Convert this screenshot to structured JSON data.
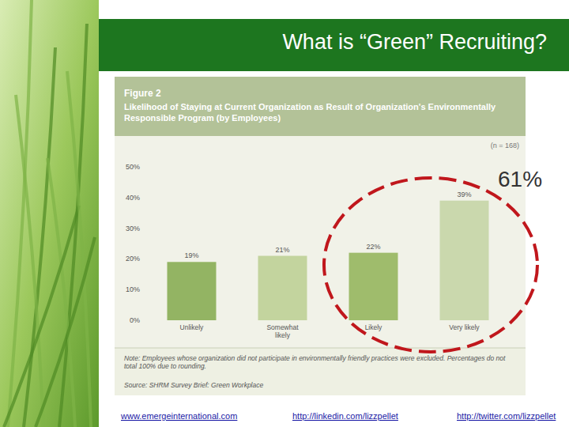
{
  "slide": {
    "title": "What is “Green” Recruiting?",
    "footer": [
      "www.emergeinternational.com",
      "http://linkedin.com/lizzpellet",
      "http://twitter.com/lizzpellet"
    ]
  },
  "chart_data": {
    "type": "bar",
    "figure_label": "Figure 2",
    "title": "Likelihood of Staying at Current Organization as Result of Organization's Environmentally Responsible Program (by Employees)",
    "sample_size": "(n = 168)",
    "categories": [
      "Unlikely",
      "Somewhat likely",
      "Likely",
      "Very likely"
    ],
    "values": [
      19,
      21,
      22,
      39
    ],
    "value_labels": [
      "19%",
      "21%",
      "22%",
      "39%"
    ],
    "colors": [
      "#93b463",
      "#c3d49e",
      "#9fbc6c",
      "#cad8ad"
    ],
    "ylim": [
      0,
      50
    ],
    "yticks": [
      {
        "value": 0,
        "label": "0%"
      },
      {
        "value": 10,
        "label": "10%"
      },
      {
        "value": 20,
        "label": "20%"
      },
      {
        "value": 30,
        "label": "30%"
      },
      {
        "value": 40,
        "label": "40%"
      },
      {
        "value": 50,
        "label": "50%"
      }
    ],
    "grid": false,
    "data_labels": true,
    "note": "Note: Employees whose organization did not participate in environmentally friendly practices were excluded. Percentages do not total 100% due to rounding.",
    "source": "Source: SHRM Survey Brief: Green Workplace",
    "annotation": "61%"
  }
}
